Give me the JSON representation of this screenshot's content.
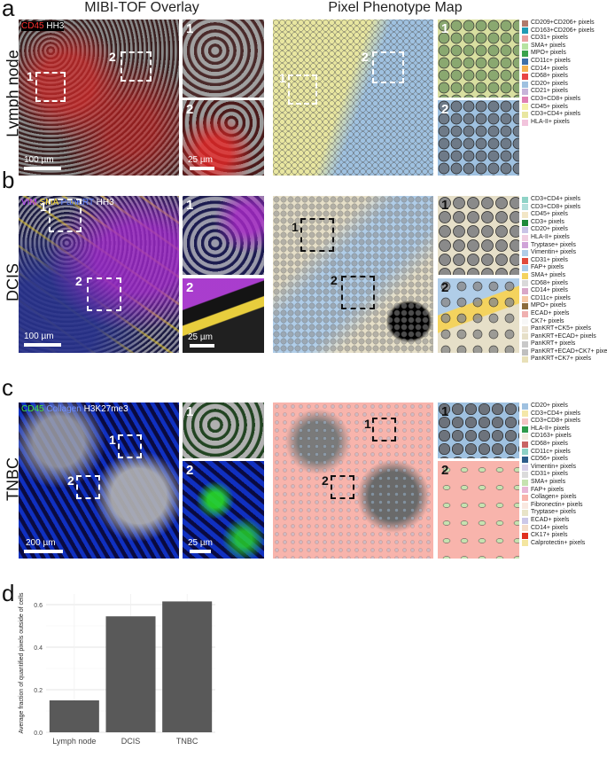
{
  "panel_letters": {
    "a": "a",
    "b": "b",
    "c": "c",
    "d": "d"
  },
  "column_titles": {
    "left": "MIBI-TOF Overlay",
    "right": "Pixel Phenotype Map"
  },
  "rows": [
    {
      "label": "Lymph node",
      "channels": [
        {
          "text": "CD45",
          "color": "#ff3030"
        },
        {
          "text": " HH3",
          "color": "#ffffff"
        }
      ],
      "scale_main": "100 µm",
      "scale_inset": "25 µm",
      "roi_labels": [
        "1",
        "2"
      ],
      "legend": [
        {
          "label": "CD209+CD206+ pixels",
          "color": "#b0796b"
        },
        {
          "label": "CD163+CD206+ pixels",
          "color": "#1f9bb4"
        },
        {
          "label": "CD31+ pixels",
          "color": "#e9a0a0"
        },
        {
          "label": "SMA+ pixels",
          "color": "#b7e3a1"
        },
        {
          "label": "MPO+ pixels",
          "color": "#3aa34c"
        },
        {
          "label": "CD11c+ pixels",
          "color": "#3f6fa8"
        },
        {
          "label": "CD14+ pixels",
          "color": "#f5b14f"
        },
        {
          "label": "CD68+ pixels",
          "color": "#e84545"
        },
        {
          "label": "CD20+ pixels",
          "color": "#9fc1e0"
        },
        {
          "label": "CD21+ pixels",
          "color": "#c7b3d9"
        },
        {
          "label": "CD3+CD8+ pixels",
          "color": "#e07fb3"
        },
        {
          "label": "CD45+ pixels",
          "color": "#f5f0a8"
        },
        {
          "label": "CD3+CD4+ pixels",
          "color": "#e8e6a0"
        },
        {
          "label": "HLA-II+ pixels",
          "color": "#f2c4dc"
        }
      ]
    },
    {
      "label": "DCIS",
      "channels": [
        {
          "text": "VIM",
          "color": "#c040ff"
        },
        {
          "text": " SMA",
          "color": "#ffe030"
        },
        {
          "text": " PanKRT",
          "color": "#6080ff"
        },
        {
          "text": " HH3",
          "color": "#ffffff"
        }
      ],
      "scale_main": "100 µm",
      "scale_inset": "25 µm",
      "roi_labels": [
        "1",
        "2"
      ],
      "legend": [
        {
          "label": "CD3+CD4+ pixels",
          "color": "#8fd3c7"
        },
        {
          "label": "CD3+CD8+ pixels",
          "color": "#b2dfdb"
        },
        {
          "label": "CD45+ pixels",
          "color": "#f2e6c6"
        },
        {
          "label": "CD3+ pixels",
          "color": "#1e8a3a"
        },
        {
          "label": "CD20+ pixels",
          "color": "#c9c3e6"
        },
        {
          "label": "HLA-II+ pixels",
          "color": "#f0cde0"
        },
        {
          "label": "Tryptase+ pixels",
          "color": "#d0a3d8"
        },
        {
          "label": "Vimentin+ pixels",
          "color": "#b0cde8"
        },
        {
          "label": "CD31+ pixels",
          "color": "#e04a3c"
        },
        {
          "label": "FAP+ pixels",
          "color": "#a9cbe8"
        },
        {
          "label": "SMA+ pixels",
          "color": "#f4d35e"
        },
        {
          "label": "CD68+ pixels",
          "color": "#d9d9d9"
        },
        {
          "label": "CD14+ pixels",
          "color": "#d8a7c8"
        },
        {
          "label": "CD11c+ pixels",
          "color": "#f6c9a5"
        },
        {
          "label": "MPO+ pixels",
          "color": "#8c6c3c"
        },
        {
          "label": "ECAD+ pixels",
          "color": "#efb0b0"
        },
        {
          "label": "CK7+ pixels",
          "color": "#f7f7f7"
        },
        {
          "label": "PanKRT+CK5+ pixels",
          "color": "#ece4d4"
        },
        {
          "label": "PanKRT+ECAD+ pixels",
          "color": "#e6dfc8"
        },
        {
          "label": "PanKRT+ pixels",
          "color": "#c9c9c9"
        },
        {
          "label": "PanKRT+ECAD+CK7+ pixels",
          "color": "#bfbfbf"
        },
        {
          "label": "PanKRT+CK7+ pixels",
          "color": "#e8e0b8"
        }
      ]
    },
    {
      "label": "TNBC",
      "channels": [
        {
          "text": "CD45",
          "color": "#40e040"
        },
        {
          "text": " Collagen",
          "color": "#7090ff"
        },
        {
          "text": " H3K27me3",
          "color": "#ffffff"
        }
      ],
      "scale_main": "200 µm",
      "scale_inset": "25 µm",
      "roi_labels": [
        "1",
        "2"
      ],
      "legend": [
        {
          "label": "CD20+ pixels",
          "color": "#9fc1e0"
        },
        {
          "label": "CD3+CD4+ pixels",
          "color": "#f4e7a8"
        },
        {
          "label": "CD3+CD8+ pixels",
          "color": "#f4c4c4"
        },
        {
          "label": "HLA-II+ pixels",
          "color": "#2e9a4a"
        },
        {
          "label": "CD163+ pixels",
          "color": "#f0eadc"
        },
        {
          "label": "CD68+ pixels",
          "color": "#c86464"
        },
        {
          "label": "CD11c+ pixels",
          "color": "#8ed1c6"
        },
        {
          "label": "CD56+ pixels",
          "color": "#2d5d8a"
        },
        {
          "label": "Vimentin+ pixels",
          "color": "#d8d0e8"
        },
        {
          "label": "CD31+ pixels",
          "color": "#dbdbdb"
        },
        {
          "label": "SMA+ pixels",
          "color": "#c6e2b0"
        },
        {
          "label": "FAP+ pixels",
          "color": "#e8b6d6"
        },
        {
          "label": "Collagen+ pixels",
          "color": "#f8b4ac"
        },
        {
          "label": "Fibronectin+ pixels",
          "color": "#f9e8e0"
        },
        {
          "label": "Tryptase+ pixels",
          "color": "#e8e4c8"
        },
        {
          "label": "ECAD+ pixels",
          "color": "#ccc8e8"
        },
        {
          "label": "CD14+ pixels",
          "color": "#f4dcc8"
        },
        {
          "label": "CK17+ pixels",
          "color": "#e03020"
        },
        {
          "label": "Calprotectin+ pixels",
          "color": "#f4e6a0"
        }
      ]
    }
  ],
  "chart_data": {
    "type": "bar",
    "categories": [
      "Lymph node",
      "DCIS",
      "TNBC"
    ],
    "values": [
      0.15,
      0.545,
      0.615
    ],
    "ylabel": "Average fraction of quantified pixels outside of cells",
    "xlabel": "",
    "ylim": [
      0,
      0.65
    ],
    "yticks": [
      "0.0",
      "0.2",
      "0.4",
      "0.6"
    ],
    "bar_color": "#595959",
    "grid": true
  }
}
